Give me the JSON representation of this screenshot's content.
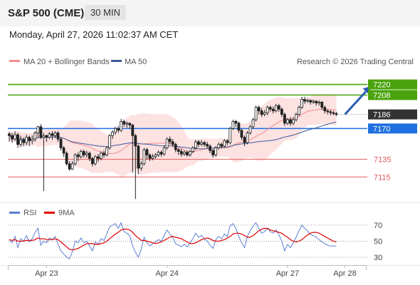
{
  "header": {
    "title": "S&P 500 (CME)",
    "timeframe": "30 MIN"
  },
  "timestamp": "Monday, April 27, 2026 11:02:37 AM CET",
  "legend": {
    "bollinger": {
      "label": "MA 20 + Bollinger Bands",
      "color": "#f08c8c"
    },
    "ma50": {
      "label": "MA 50",
      "color": "#3c5a9a"
    },
    "credit": "Research © 2026 Trading Central"
  },
  "rsi_legend": {
    "rsi": {
      "label": "RSI",
      "color": "#5b7fd6"
    },
    "ma9": {
      "label": "9MA",
      "color": "#e00000"
    }
  },
  "chart_data": {
    "type": "candlestick",
    "y_range": [
      7087,
      7235
    ],
    "x_labels": [
      {
        "label": "Apr 23",
        "index": 13
      },
      {
        "label": "Apr 24",
        "index": 55
      },
      {
        "label": "Apr 27",
        "index": 97
      },
      {
        "label": "Apr 28",
        "index": 117
      }
    ],
    "levels": [
      {
        "label": "7220",
        "value": 7220,
        "color": "#4aa30c",
        "style": "resistance-box"
      },
      {
        "label": "7208",
        "value": 7208,
        "color": "#4aa30c",
        "style": "resistance-box"
      },
      {
        "label": "7186",
        "value": 7186,
        "color": "#333333",
        "style": "current-price-box"
      },
      {
        "label": "7170",
        "value": 7170,
        "color": "#1f6fe0",
        "style": "pivot-box"
      },
      {
        "label": "7135",
        "value": 7135,
        "color": "#e35a5a",
        "style": "support"
      },
      {
        "label": "7115",
        "value": 7115,
        "color": "#e35a5a",
        "style": "support"
      }
    ],
    "arrow": {
      "from": [
        117,
        7186
      ],
      "to": [
        126,
        7218
      ]
    },
    "candles": [
      [
        7164,
        7162,
        7155,
        7166
      ],
      [
        7162,
        7158,
        7154,
        7165
      ],
      [
        7158,
        7163,
        7156,
        7167
      ],
      [
        7163,
        7152,
        7148,
        7165
      ],
      [
        7152,
        7157,
        7149,
        7162
      ],
      [
        7157,
        7154,
        7150,
        7160
      ],
      [
        7154,
        7160,
        7151,
        7163
      ],
      [
        7160,
        7156,
        7150,
        7162
      ],
      [
        7156,
        7158,
        7152,
        7162
      ],
      [
        7158,
        7165,
        7155,
        7167
      ],
      [
        7165,
        7172,
        7160,
        7173
      ],
      [
        7172,
        7160,
        7158,
        7175
      ],
      [
        7160,
        7162,
        7099,
        7165
      ],
      [
        7162,
        7160,
        7155,
        7163
      ],
      [
        7160,
        7164,
        7158,
        7166
      ],
      [
        7164,
        7162,
        7157,
        7167
      ],
      [
        7162,
        7165,
        7159,
        7167
      ],
      [
        7165,
        7158,
        7155,
        7167
      ],
      [
        7158,
        7148,
        7145,
        7160
      ],
      [
        7148,
        7142,
        7138,
        7150
      ],
      [
        7142,
        7130,
        7128,
        7144
      ],
      [
        7130,
        7124,
        7122,
        7133
      ],
      [
        7124,
        7130,
        7123,
        7133
      ],
      [
        7130,
        7140,
        7128,
        7142
      ],
      [
        7140,
        7138,
        7133,
        7143
      ],
      [
        7138,
        7144,
        7136,
        7146
      ],
      [
        7144,
        7140,
        7137,
        7146
      ],
      [
        7140,
        7142,
        7137,
        7145
      ],
      [
        7142,
        7136,
        7133,
        7144
      ],
      [
        7136,
        7130,
        7127,
        7138
      ],
      [
        7130,
        7138,
        7128,
        7140
      ],
      [
        7138,
        7136,
        7132,
        7141
      ],
      [
        7136,
        7142,
        7134,
        7144
      ],
      [
        7142,
        7140,
        7137,
        7145
      ],
      [
        7140,
        7148,
        7138,
        7150
      ],
      [
        7148,
        7162,
        7146,
        7164
      ],
      [
        7162,
        7166,
        7158,
        7168
      ],
      [
        7166,
        7170,
        7163,
        7172
      ],
      [
        7170,
        7168,
        7165,
        7173
      ],
      [
        7168,
        7178,
        7166,
        7181
      ],
      [
        7178,
        7175,
        7172,
        7180
      ],
      [
        7175,
        7176,
        7171,
        7178
      ],
      [
        7176,
        7174,
        7170,
        7177
      ],
      [
        7174,
        7162,
        7120,
        7175
      ],
      [
        7162,
        7150,
        7090,
        7164
      ],
      [
        7150,
        7125,
        7118,
        7152
      ],
      [
        7125,
        7130,
        7122,
        7133
      ],
      [
        7130,
        7146,
        7128,
        7148
      ],
      [
        7146,
        7140,
        7135,
        7148
      ],
      [
        7140,
        7136,
        7133,
        7142
      ],
      [
        7136,
        7138,
        7134,
        7141
      ],
      [
        7138,
        7140,
        7136,
        7142
      ],
      [
        7140,
        7143,
        7138,
        7145
      ],
      [
        7143,
        7141,
        7138,
        7145
      ],
      [
        7141,
        7148,
        7139,
        7151
      ],
      [
        7148,
        7158,
        7146,
        7160
      ],
      [
        7158,
        7155,
        7152,
        7161
      ],
      [
        7155,
        7152,
        7149,
        7158
      ],
      [
        7152,
        7146,
        7143,
        7154
      ],
      [
        7146,
        7144,
        7140,
        7148
      ],
      [
        7144,
        7141,
        7138,
        7147
      ],
      [
        7141,
        7143,
        7139,
        7145
      ],
      [
        7143,
        7140,
        7138,
        7145
      ],
      [
        7140,
        7144,
        7138,
        7146
      ],
      [
        7144,
        7148,
        7142,
        7150
      ],
      [
        7148,
        7155,
        7146,
        7157
      ],
      [
        7155,
        7152,
        7149,
        7157
      ],
      [
        7152,
        7154,
        7150,
        7157
      ],
      [
        7154,
        7152,
        7149,
        7156
      ],
      [
        7152,
        7150,
        7147,
        7155
      ],
      [
        7150,
        7145,
        7142,
        7152
      ],
      [
        7145,
        7140,
        7137,
        7147
      ],
      [
        7140,
        7148,
        7138,
        7150
      ],
      [
        7148,
        7152,
        7146,
        7154
      ],
      [
        7152,
        7150,
        7147,
        7154
      ],
      [
        7150,
        7156,
        7148,
        7158
      ],
      [
        7156,
        7154,
        7151,
        7158
      ],
      [
        7154,
        7170,
        7152,
        7172
      ],
      [
        7170,
        7178,
        7168,
        7180
      ],
      [
        7178,
        7176,
        7172,
        7180
      ],
      [
        7176,
        7168,
        7165,
        7178
      ],
      [
        7168,
        7160,
        7157,
        7170
      ],
      [
        7160,
        7154,
        7150,
        7162
      ],
      [
        7154,
        7165,
        7152,
        7167
      ],
      [
        7165,
        7172,
        7163,
        7174
      ],
      [
        7172,
        7180,
        7170,
        7182
      ],
      [
        7180,
        7194,
        7178,
        7196
      ],
      [
        7194,
        7190,
        7186,
        7196
      ],
      [
        7190,
        7186,
        7183,
        7193
      ],
      [
        7186,
        7188,
        7184,
        7191
      ],
      [
        7188,
        7194,
        7185,
        7196
      ],
      [
        7194,
        7192,
        7189,
        7196
      ],
      [
        7192,
        7190,
        7187,
        7195
      ],
      [
        7190,
        7196,
        7188,
        7198
      ],
      [
        7196,
        7192,
        7189,
        7198
      ],
      [
        7192,
        7186,
        7183,
        7194
      ],
      [
        7186,
        7176,
        7173,
        7188
      ],
      [
        7176,
        7180,
        7174,
        7182
      ],
      [
        7180,
        7176,
        7173,
        7183
      ],
      [
        7176,
        7180,
        7174,
        7183
      ],
      [
        7180,
        7186,
        7178,
        7188
      ],
      [
        7186,
        7194,
        7184,
        7196
      ],
      [
        7194,
        7203,
        7192,
        7206
      ],
      [
        7203,
        7201,
        7198,
        7206
      ],
      [
        7201,
        7202,
        7199,
        7204
      ],
      [
        7202,
        7200,
        7197,
        7203
      ],
      [
        7200,
        7201,
        7198,
        7203
      ],
      [
        7201,
        7199,
        7196,
        7202
      ],
      [
        7199,
        7200,
        7196,
        7202
      ],
      [
        7200,
        7194,
        7191,
        7201
      ],
      [
        7194,
        7190,
        7187,
        7196
      ],
      [
        7190,
        7189,
        7186,
        7192
      ],
      [
        7189,
        7188,
        7185,
        7191
      ],
      [
        7188,
        7187,
        7185,
        7190
      ],
      [
        7187,
        7186,
        7184,
        7189
      ]
    ],
    "rsi": {
      "levels": [
        30,
        50,
        70
      ],
      "range": [
        22,
        78
      ],
      "rsi_values": [
        52,
        48,
        56,
        42,
        53,
        50,
        57,
        49,
        53,
        61,
        66,
        45,
        50,
        48,
        54,
        52,
        56,
        46,
        38,
        34,
        30,
        28,
        37,
        50,
        48,
        54,
        48,
        50,
        44,
        38,
        49,
        46,
        53,
        51,
        59,
        68,
        70,
        72,
        66,
        73,
        62,
        60,
        57,
        44,
        36,
        30,
        40,
        55,
        48,
        44,
        47,
        49,
        52,
        50,
        57,
        64,
        59,
        55,
        47,
        45,
        43,
        46,
        43,
        48,
        53,
        60,
        55,
        57,
        53,
        50,
        45,
        41,
        52,
        56,
        53,
        59,
        56,
        69,
        72,
        66,
        56,
        48,
        42,
        56,
        63,
        69,
        73,
        66,
        60,
        62,
        66,
        62,
        60,
        64,
        58,
        50,
        38,
        46,
        42,
        48,
        55,
        63,
        70,
        66,
        63,
        58,
        57,
        55,
        52,
        49,
        47,
        45,
        44,
        44,
        44
      ],
      "ma9_values": [
        52,
        51,
        52,
        50,
        50,
        50,
        51,
        51,
        51,
        52,
        54,
        53,
        53,
        52,
        52,
        52,
        53,
        52,
        49,
        46,
        43,
        40,
        39,
        40,
        41,
        43,
        45,
        47,
        47,
        47,
        46,
        46,
        47,
        48,
        50,
        53,
        56,
        59,
        61,
        64,
        65,
        65,
        64,
        61,
        57,
        54,
        51,
        51,
        50,
        49,
        48,
        47,
        48,
        49,
        51,
        53,
        55,
        56,
        55,
        54,
        53,
        51,
        49,
        47,
        47,
        48,
        50,
        52,
        53,
        54,
        53,
        51,
        50,
        50,
        51,
        52,
        54,
        56,
        59,
        60,
        60,
        59,
        57,
        55,
        55,
        57,
        60,
        63,
        65,
        66,
        66,
        64,
        63,
        62,
        61,
        60,
        57,
        55,
        52,
        50,
        49,
        50,
        52,
        55,
        58,
        60,
        61,
        61,
        60,
        58,
        56,
        54,
        52,
        50,
        49
      ]
    }
  }
}
